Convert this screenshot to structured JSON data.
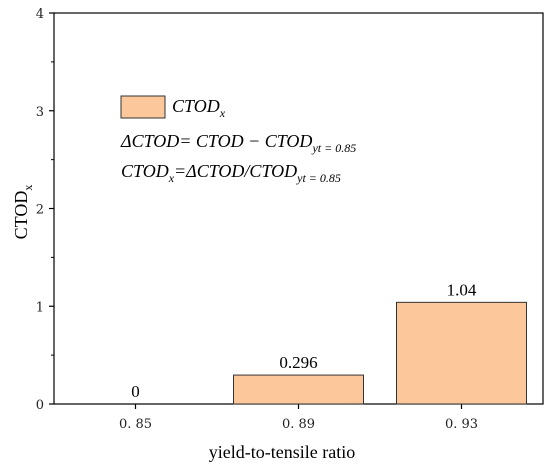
{
  "chart_data": {
    "type": "bar",
    "categories": [
      "0. 85",
      "0. 89",
      "0. 93"
    ],
    "values": [
      0,
      0.296,
      1.04
    ],
    "data_labels": [
      "0",
      "0.296",
      "1.04"
    ],
    "xlabel": "yield-to-tensile ratio",
    "ylabel": {
      "main": "CTOD",
      "sub": "x"
    },
    "ylim": [
      0,
      4
    ],
    "yticks": [
      "0",
      "1",
      "2",
      "3",
      "4"
    ],
    "grid": false,
    "legend_position": "top-left",
    "legend": {
      "main": "CTOD",
      "sub": "x"
    },
    "annotations": [
      {
        "main": "ΔCTOD= CTOD − CTOD",
        "sub": "yt = 0.85"
      },
      {
        "pre": "CTOD",
        "pre_sub": "x",
        "main": "=ΔCTOD/CTOD",
        "sub": "yt = 0.85"
      }
    ],
    "colors": {
      "bar_fill": "#FCC79A",
      "bar_stroke": "#333333",
      "axis": "#000000"
    }
  }
}
